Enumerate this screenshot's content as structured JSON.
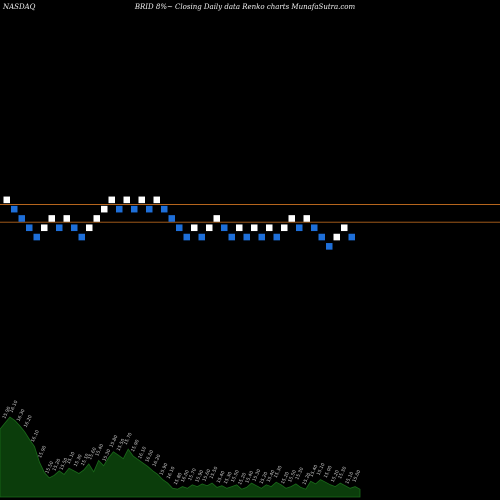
{
  "header": {
    "exchange": "NASDAQ",
    "caption": "BRID 8%~ Closing Daily data Renko charts MunafaSutra.com"
  },
  "colors": {
    "background": "#000000",
    "up_brick": "#ffffff",
    "down_brick": "#1e6fd9",
    "reference_line": "#b5651d",
    "volume_fill": "#0b3d0b",
    "volume_stroke": "#1a6b1a",
    "volume_label": "#d0d0d0"
  },
  "chart_data": {
    "type": "renko",
    "brick_step": 1,
    "reference_lines": [
      0,
      -1.9
    ],
    "bricks": [
      {
        "level": 0.5,
        "dir": "up"
      },
      {
        "level": -0.5,
        "dir": "down"
      },
      {
        "level": -1.5,
        "dir": "down"
      },
      {
        "level": -2.5,
        "dir": "down"
      },
      {
        "level": -3.5,
        "dir": "down"
      },
      {
        "level": -2.5,
        "dir": "up"
      },
      {
        "level": -1.5,
        "dir": "up"
      },
      {
        "level": -2.5,
        "dir": "down"
      },
      {
        "level": -1.5,
        "dir": "up"
      },
      {
        "level": -2.5,
        "dir": "down"
      },
      {
        "level": -3.5,
        "dir": "down"
      },
      {
        "level": -2.5,
        "dir": "up"
      },
      {
        "level": -1.5,
        "dir": "up"
      },
      {
        "level": -0.5,
        "dir": "up"
      },
      {
        "level": 0.5,
        "dir": "up"
      },
      {
        "level": -0.5,
        "dir": "down"
      },
      {
        "level": 0.5,
        "dir": "up"
      },
      {
        "level": -0.5,
        "dir": "down"
      },
      {
        "level": 0.5,
        "dir": "up"
      },
      {
        "level": -0.5,
        "dir": "down"
      },
      {
        "level": 0.5,
        "dir": "up"
      },
      {
        "level": -0.5,
        "dir": "down"
      },
      {
        "level": -1.5,
        "dir": "down"
      },
      {
        "level": -2.5,
        "dir": "down"
      },
      {
        "level": -3.5,
        "dir": "down"
      },
      {
        "level": -2.5,
        "dir": "up"
      },
      {
        "level": -3.5,
        "dir": "down"
      },
      {
        "level": -2.5,
        "dir": "up"
      },
      {
        "level": -1.5,
        "dir": "up"
      },
      {
        "level": -2.5,
        "dir": "down"
      },
      {
        "level": -3.5,
        "dir": "down"
      },
      {
        "level": -2.5,
        "dir": "up"
      },
      {
        "level": -3.5,
        "dir": "down"
      },
      {
        "level": -2.5,
        "dir": "up"
      },
      {
        "level": -3.5,
        "dir": "down"
      },
      {
        "level": -2.5,
        "dir": "up"
      },
      {
        "level": -3.5,
        "dir": "down"
      },
      {
        "level": -2.5,
        "dir": "up"
      },
      {
        "level": -1.5,
        "dir": "up"
      },
      {
        "level": -2.5,
        "dir": "down"
      },
      {
        "level": -1.5,
        "dir": "up"
      },
      {
        "level": -2.5,
        "dir": "down"
      },
      {
        "level": -3.5,
        "dir": "down"
      },
      {
        "level": -4.5,
        "dir": "down"
      },
      {
        "level": -3.5,
        "dir": "up"
      },
      {
        "level": -2.5,
        "dir": "up"
      },
      {
        "level": -3.5,
        "dir": "down"
      }
    ],
    "volume_labels": [
      "15.90",
      "16.10",
      "16.30",
      "16.20",
      "16.10",
      "15.90",
      "15.50",
      "15.20",
      "15.50",
      "15.10",
      "15.30",
      "15.10",
      "15.60",
      "15.40",
      "15.30",
      "15.80",
      "15.50",
      "15.70",
      "15.90",
      "16.10",
      "16.00",
      "16.20",
      "15.90",
      "16.10",
      "15.80",
      "16.00",
      "15.70",
      "15.90",
      "15.60",
      "15.50",
      "15.40",
      "15.30",
      "15.50",
      "15.20",
      "15.40",
      "15.30",
      "15.20",
      "15.40",
      "15.30",
      "15.20",
      "15.50",
      "15.30",
      "15.20",
      "15.40",
      "15.10",
      "15.00",
      "15.20",
      "15.30",
      "15.10",
      "15.00"
    ],
    "volume_values": [
      0.78,
      0.85,
      0.92,
      0.88,
      0.82,
      0.75,
      0.66,
      0.58,
      0.4,
      0.28,
      0.22,
      0.25,
      0.3,
      0.26,
      0.33,
      0.3,
      0.27,
      0.31,
      0.38,
      0.29,
      0.42,
      0.36,
      0.45,
      0.52,
      0.48,
      0.44,
      0.55,
      0.47,
      0.43,
      0.39,
      0.35,
      0.3,
      0.26,
      0.2,
      0.16,
      0.1,
      0.09,
      0.12,
      0.1,
      0.14,
      0.12,
      0.15,
      0.13,
      0.16,
      0.11,
      0.13,
      0.1,
      0.12,
      0.14,
      0.09,
      0.11,
      0.16,
      0.13,
      0.1,
      0.14,
      0.12,
      0.17,
      0.14,
      0.1,
      0.12,
      0.15,
      0.11,
      0.09,
      0.18,
      0.15,
      0.2,
      0.17,
      0.14,
      0.12,
      0.16,
      0.13,
      0.1,
      0.12,
      0.09
    ]
  }
}
